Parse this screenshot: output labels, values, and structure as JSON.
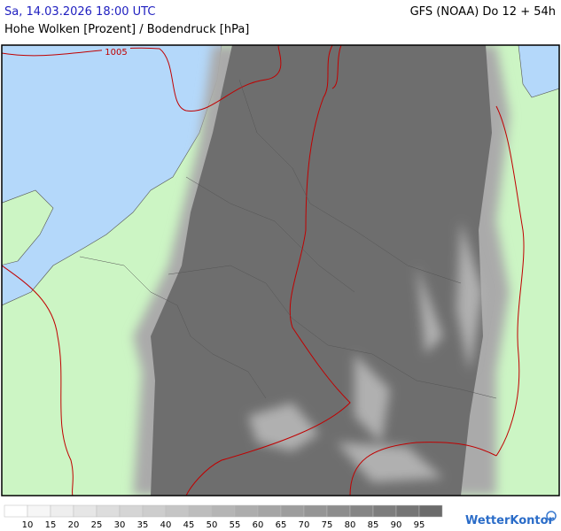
{
  "header": {
    "datetime": "Sa, 14.03.2026 18:00 UTC",
    "model": "GFS (NOAA) Do 12 + 54h",
    "subtitle": "Hohe Wolken [Prozent] / Bodendruck [hPa]"
  },
  "map": {
    "isobars": [
      {
        "label": "1005"
      }
    ]
  },
  "legend": {
    "values": [
      10,
      15,
      20,
      25,
      30,
      35,
      40,
      45,
      50,
      55,
      60,
      65,
      70,
      75,
      80,
      85,
      90,
      95
    ],
    "colors": [
      "#ffffff",
      "#f6f6f6",
      "#eeeeee",
      "#e6e6e6",
      "#dddddd",
      "#d5d5d5",
      "#cdcdcd",
      "#c5c5c5",
      "#bdbdbd",
      "#b5b5b5",
      "#adadad",
      "#a5a5a5",
      "#9d9d9d",
      "#959595",
      "#8d8d8d",
      "#858585",
      "#7d7d7d",
      "#757575",
      "#6b6b6b"
    ]
  },
  "brand": "WetterKontor"
}
